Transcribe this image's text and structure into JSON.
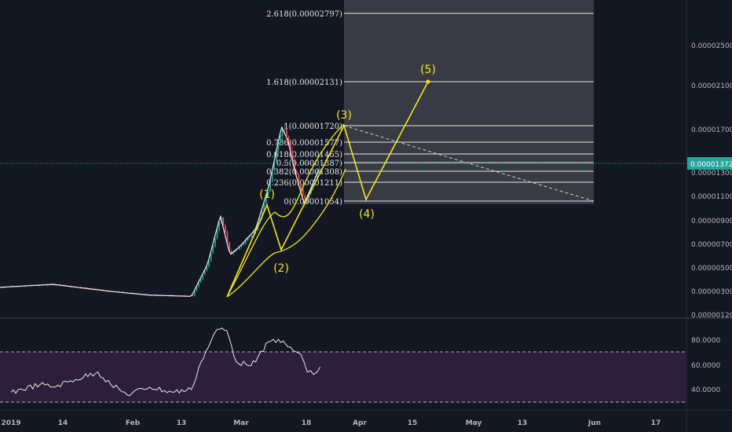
{
  "price_axis": {
    "labels": [
      "0.00002500",
      "0.00002100",
      "0.00001700",
      "0.00001300",
      "0.00001100",
      "0.00000900",
      "0.00000700",
      "0.00000500",
      "0.00000300",
      "0.00000120"
    ],
    "current_price": "0.00001372",
    "current_price_color": "#26a69a"
  },
  "rsi_axis": {
    "labels": [
      "80.0000",
      "60.0000",
      "40.0000"
    ]
  },
  "time_axis": {
    "labels": [
      "2019",
      "14",
      "Feb",
      "13",
      "Mar",
      "18",
      "Apr",
      "15",
      "May",
      "13",
      "Jun",
      "17"
    ]
  },
  "fib_levels": [
    {
      "ratio": "2.618",
      "label": "2.618(0.00002797)"
    },
    {
      "ratio": "1.618",
      "label": "1.618(0.00002131)"
    },
    {
      "ratio": "1",
      "label": "1(0.00001720)"
    },
    {
      "ratio": "0.786",
      "label": "0.786(0.00001577)"
    },
    {
      "ratio": "0.618",
      "label": "0.618(0.00001465)"
    },
    {
      "ratio": "0.5",
      "label": "0.5(0.00001387)"
    },
    {
      "ratio": "0.382",
      "label": "0.382(0.00001308)"
    },
    {
      "ratio": "0.236",
      "label": "0.236(0.00001211)"
    },
    {
      "ratio": "0",
      "label": "0(0.00001054)"
    }
  ],
  "elliott_waves": [
    "(1)",
    "(2)",
    "(3)",
    "(4)",
    "(5)"
  ],
  "colors": {
    "background": "#131722",
    "fib_zone": "#3a3d46",
    "wave": "#f3e221",
    "rsi_band": "#2d1f3c",
    "bull": "#26a69a",
    "bear": "#ef5350",
    "axis_text": "#b2b5be"
  },
  "chart_data": {
    "type": "line",
    "title": "",
    "price_series": {
      "x": [
        "2019-01-01",
        "2019-01-14",
        "2019-02-01",
        "2019-02-13",
        "2019-02-26",
        "2019-03-03",
        "2019-03-07",
        "2019-03-10",
        "2019-03-13",
        "2019-03-18",
        "2019-03-22",
        "2019-03-26",
        "2019-03-28",
        "2019-03-30",
        "2019-04-02",
        "2019-04-04",
        "2019-04-07"
      ],
      "y": [
        3.6e-06,
        3.8e-06,
        3.2e-06,
        2.9e-06,
        2.8e-06,
        5.5e-06,
        9.6e-06,
        6.3e-06,
        7e-06,
        8.5e-06,
        1.2e-05,
        1.72e-05,
        1.6e-05,
        1.35e-05,
        1.06e-05,
        1.18e-05,
        1.38e-05
      ]
    },
    "rsi_series": {
      "x": [
        "2019-01-01",
        "2019-01-10",
        "2019-01-14",
        "2019-01-21",
        "2019-01-28",
        "2019-02-01",
        "2019-02-06",
        "2019-02-13",
        "2019-02-20",
        "2019-02-26",
        "2019-03-01",
        "2019-03-04",
        "2019-03-06",
        "2019-03-09",
        "2019-03-12",
        "2019-03-15",
        "2019-03-18",
        "2019-03-22",
        "2019-03-25",
        "2019-03-28",
        "2019-04-01",
        "2019-04-03",
        "2019-04-05",
        "2019-04-07"
      ],
      "y": [
        38,
        44,
        42,
        48,
        54,
        44,
        36,
        42,
        38,
        40,
        62,
        78,
        88,
        87,
        62,
        60,
        62,
        78,
        80,
        74,
        68,
        54,
        52,
        58
      ]
    },
    "rsi_levels": [
      70,
      30
    ],
    "price_ylim": [
      1.2e-06,
      2.9e-05
    ],
    "rsi_ylim": [
      30,
      90
    ]
  }
}
